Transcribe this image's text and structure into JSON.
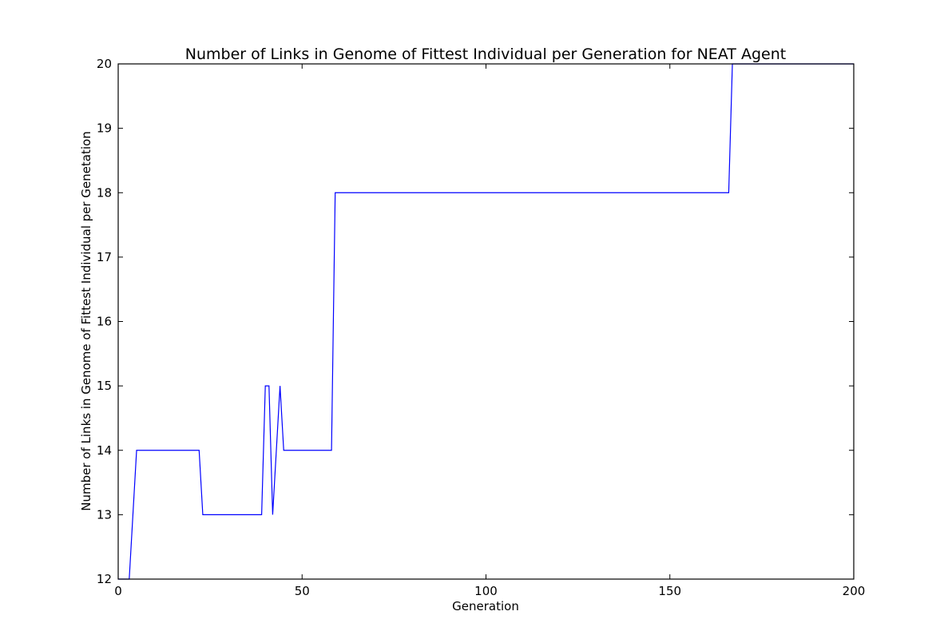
{
  "chart_data": {
    "type": "line",
    "title": "Number of Links in Genome of Fittest Individual per Generation for NEAT Agent",
    "xlabel": "Generation",
    "ylabel": "Number of Links in Genome of Fittest Individual per Genetation",
    "xlim": [
      0,
      200
    ],
    "ylim": [
      12,
      20
    ],
    "xticks": [
      0,
      50,
      100,
      150,
      200
    ],
    "yticks": [
      12,
      13,
      14,
      15,
      16,
      17,
      18,
      19,
      20
    ],
    "grid": false,
    "series": [
      {
        "color": "#0000ff",
        "x": [
          0,
          3,
          5,
          22,
          23,
          39,
          40,
          41,
          42,
          44,
          45,
          58,
          59,
          166,
          167,
          200
        ],
        "y": [
          12,
          12,
          14,
          14,
          13,
          13,
          15,
          15,
          13,
          15,
          14,
          14,
          18,
          18,
          20,
          20
        ]
      }
    ]
  }
}
